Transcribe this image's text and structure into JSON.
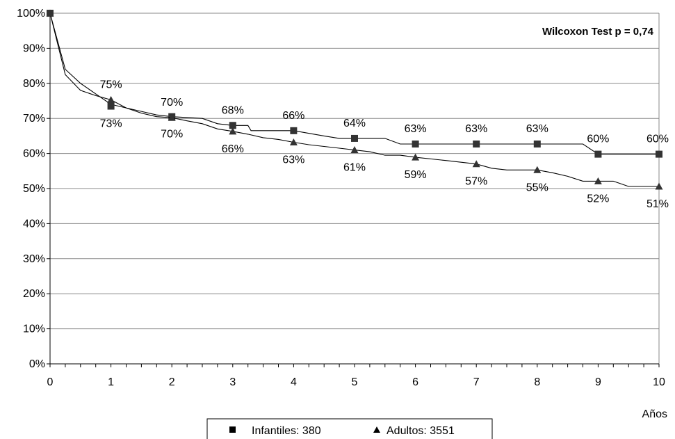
{
  "chart_data": {
    "type": "line",
    "annotation": "Wilcoxon Test p = 0,74",
    "xlabel": "Años",
    "ylabel": "",
    "xlim": [
      0,
      10
    ],
    "ylim": [
      0,
      100
    ],
    "x_ticks": [
      "0",
      "1",
      "2",
      "3",
      "4",
      "5",
      "6",
      "7",
      "8",
      "9",
      "10"
    ],
    "y_ticks": [
      "0%",
      "10%",
      "20%",
      "30%",
      "40%",
      "50%",
      "60%",
      "70%",
      "80%",
      "90%",
      "100%"
    ],
    "grid": true,
    "legend_position": "bottom",
    "series": [
      {
        "name": "Infantiles: 380",
        "marker": "square",
        "color": "#000000",
        "markers": [
          {
            "x": 0,
            "y": 100,
            "label": ""
          },
          {
            "x": 1,
            "y": 73.5,
            "label": "73%"
          },
          {
            "x": 2,
            "y": 70.5,
            "label": "70%"
          },
          {
            "x": 3,
            "y": 68,
            "label": "68%"
          },
          {
            "x": 4,
            "y": 66.5,
            "label": "66%"
          },
          {
            "x": 5,
            "y": 64.3,
            "label": "64%"
          },
          {
            "x": 6,
            "y": 62.7,
            "label": "63%"
          },
          {
            "x": 7,
            "y": 62.7,
            "label": "63%"
          },
          {
            "x": 8,
            "y": 62.7,
            "label": "63%"
          },
          {
            "x": 9,
            "y": 59.8,
            "label": "60%"
          },
          {
            "x": 10,
            "y": 59.8,
            "label": "60%"
          }
        ],
        "curve": [
          [
            0,
            100
          ],
          [
            0.25,
            84
          ],
          [
            0.5,
            80
          ],
          [
            0.75,
            77
          ],
          [
            1,
            74
          ],
          [
            1.25,
            73
          ],
          [
            1.5,
            72
          ],
          [
            1.75,
            71
          ],
          [
            2,
            70.5
          ],
          [
            2.5,
            70
          ],
          [
            2.75,
            68.5
          ],
          [
            3,
            68
          ],
          [
            3.25,
            68
          ],
          [
            3.3,
            66.5
          ],
          [
            3.75,
            66.5
          ],
          [
            4,
            66.5
          ],
          [
            4.5,
            65
          ],
          [
            4.75,
            64.3
          ],
          [
            5.5,
            64.3
          ],
          [
            5.75,
            62.7
          ],
          [
            6,
            62.7
          ],
          [
            8.75,
            62.7
          ],
          [
            9,
            59.8
          ],
          [
            10,
            59.8
          ]
        ]
      },
      {
        "name": "Adultos: 3551",
        "marker": "triangle",
        "color": "#000000",
        "markers": [
          {
            "x": 0,
            "y": 100,
            "label": ""
          },
          {
            "x": 1,
            "y": 75.3,
            "label": "75%"
          },
          {
            "x": 2,
            "y": 70.2,
            "label": "70%"
          },
          {
            "x": 3,
            "y": 66.3,
            "label": "66%"
          },
          {
            "x": 4,
            "y": 63.2,
            "label": "63%"
          },
          {
            "x": 5,
            "y": 61,
            "label": "61%"
          },
          {
            "x": 6,
            "y": 58.9,
            "label": "59%"
          },
          {
            "x": 7,
            "y": 57,
            "label": "57%"
          },
          {
            "x": 8,
            "y": 55.3,
            "label": "55%"
          },
          {
            "x": 9,
            "y": 52.1,
            "label": "52%"
          },
          {
            "x": 10,
            "y": 50.6,
            "label": "51%"
          }
        ],
        "curve": [
          [
            0,
            100
          ],
          [
            0.25,
            82.5
          ],
          [
            0.5,
            78
          ],
          [
            0.75,
            76.5
          ],
          [
            1,
            75.3
          ],
          [
            1.25,
            73
          ],
          [
            1.5,
            71.5
          ],
          [
            1.75,
            70.5
          ],
          [
            2,
            70.2
          ],
          [
            2.25,
            69.3
          ],
          [
            2.5,
            68.5
          ],
          [
            2.75,
            67
          ],
          [
            3,
            66.3
          ],
          [
            3.25,
            65.5
          ],
          [
            3.5,
            64.5
          ],
          [
            3.75,
            64
          ],
          [
            4,
            63.2
          ],
          [
            4.25,
            62.5
          ],
          [
            4.5,
            62
          ],
          [
            4.75,
            61.5
          ],
          [
            5,
            61
          ],
          [
            5.25,
            60.5
          ],
          [
            5.5,
            59.5
          ],
          [
            5.75,
            59.5
          ],
          [
            6,
            58.9
          ],
          [
            6.5,
            58
          ],
          [
            7,
            57
          ],
          [
            7.25,
            55.8
          ],
          [
            7.5,
            55.3
          ],
          [
            8,
            55.3
          ],
          [
            8.25,
            54.5
          ],
          [
            8.5,
            53.5
          ],
          [
            8.75,
            52.1
          ],
          [
            9.25,
            52.1
          ],
          [
            9.5,
            50.6
          ],
          [
            10,
            50.6
          ]
        ]
      }
    ]
  }
}
